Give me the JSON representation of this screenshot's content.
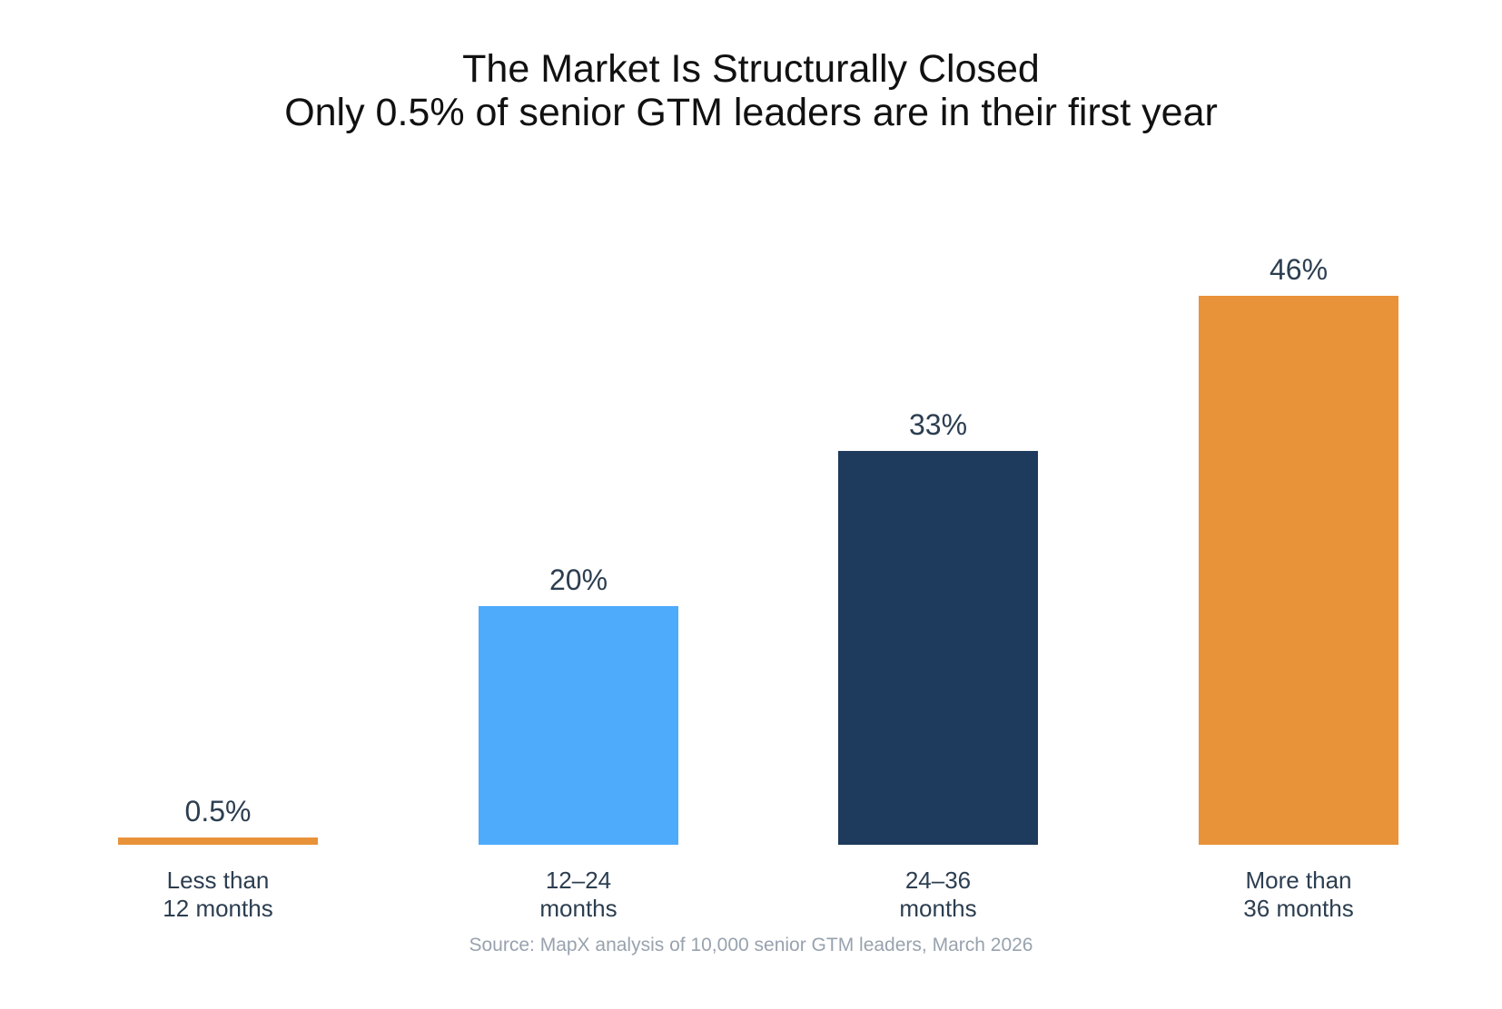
{
  "chart_data": {
    "type": "bar",
    "title": "The Market Is Structurally Closed",
    "subtitle": "Only 0.5% of senior GTM leaders are in their first year",
    "categories": [
      [
        "Less than",
        "12 months"
      ],
      [
        "12–24",
        "months"
      ],
      [
        "24–36",
        "months"
      ],
      [
        "More than",
        "36 months"
      ]
    ],
    "values": [
      0.5,
      20,
      33,
      46
    ],
    "value_labels": [
      "0.5%",
      "20%",
      "33%",
      "46%"
    ],
    "colors": [
      "#e8923a",
      "#4eabfc",
      "#1e3a5c",
      "#e8923a"
    ],
    "ylim": [
      0,
      46
    ],
    "xlabel": "",
    "ylabel": "",
    "grid": false,
    "legend": "none"
  },
  "source": "Source: MapX analysis of 10,000 senior GTM leaders, March 2026",
  "colors": {
    "label_text": "#2c3e50",
    "title_text": "#111111",
    "source_text": "#98a2ae"
  }
}
